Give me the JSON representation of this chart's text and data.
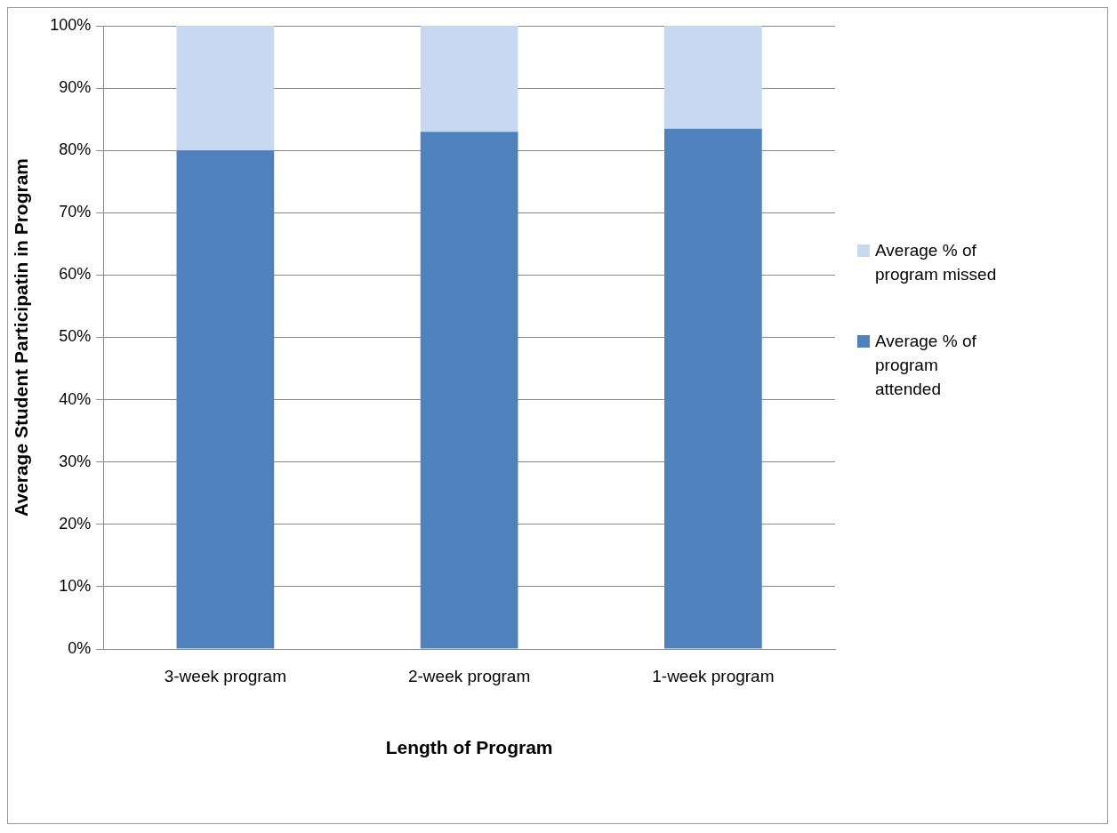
{
  "chart_data": {
    "type": "bar",
    "stacked": true,
    "xlabel": "Length of Program",
    "ylabel": "Average Student Participatin in Program",
    "categories": [
      "3-week program",
      "2-week program",
      "1-week program"
    ],
    "series": [
      {
        "name": "Average % of program attended",
        "color": "#4f81bd",
        "values": [
          80,
          83,
          83.5
        ]
      },
      {
        "name": "Average % of program missed",
        "color": "#c6d9f1",
        "values": [
          20,
          17,
          16.5
        ]
      }
    ],
    "ylim": [
      0,
      100
    ],
    "yticks": [
      {
        "value": 0,
        "label": "0%"
      },
      {
        "value": 10,
        "label": "10%"
      },
      {
        "value": 20,
        "label": "20%"
      },
      {
        "value": 30,
        "label": "30%"
      },
      {
        "value": 40,
        "label": "40%"
      },
      {
        "value": 50,
        "label": "50%"
      },
      {
        "value": 60,
        "label": "60%"
      },
      {
        "value": 70,
        "label": "70%"
      },
      {
        "value": 80,
        "label": "80%"
      },
      {
        "value": 90,
        "label": "90%"
      },
      {
        "value": 100,
        "label": "100%"
      }
    ],
    "grid": "y",
    "legend": "right"
  }
}
